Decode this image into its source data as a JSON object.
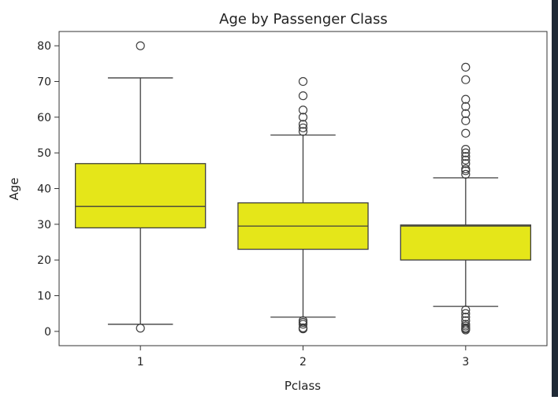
{
  "chart_data": {
    "type": "box",
    "title": "Age by Passenger Class",
    "xlabel": "Pclass",
    "ylabel": "Age",
    "ylim": [
      -4,
      84
    ],
    "yticks": [
      0,
      10,
      20,
      30,
      40,
      50,
      60,
      70,
      80
    ],
    "grid": false,
    "box_color": "#e5e619",
    "edge_color": "#3f3f3f",
    "categories": [
      "1",
      "2",
      "3"
    ],
    "boxes": [
      {
        "category": "1",
        "whisker_low": 2,
        "q1": 29,
        "median": 35,
        "q3": 47,
        "whisker_high": 71,
        "outliers": [
          0.9,
          80
        ]
      },
      {
        "category": "2",
        "whisker_low": 4,
        "q1": 23,
        "median": 29.5,
        "q3": 36,
        "whisker_high": 55,
        "outliers": [
          0.7,
          0.8,
          1,
          2,
          2.5,
          3,
          56,
          57,
          58,
          60,
          62,
          66,
          70
        ]
      },
      {
        "category": "3",
        "whisker_low": 7,
        "q1": 20,
        "median": 29.5,
        "q3": 29.8,
        "whisker_high": 43,
        "outliers": [
          0.4,
          0.7,
          1,
          1.5,
          2,
          3,
          4,
          5,
          6,
          44,
          45,
          45.5,
          47,
          48,
          49,
          50,
          51,
          55.5,
          59,
          61,
          63,
          65,
          70.5,
          74
        ]
      }
    ]
  }
}
